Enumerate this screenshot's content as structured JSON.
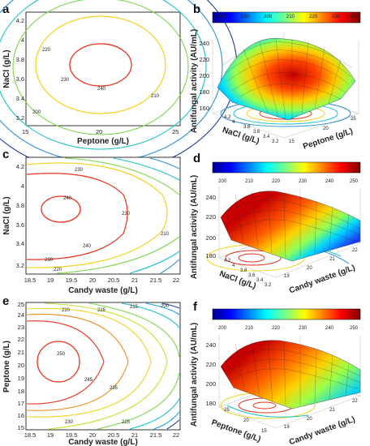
{
  "panels": {
    "a": {
      "label": "a",
      "xlabel": "Peptone (g/L)",
      "ylabel": "NaCl (g/L)",
      "xticks": [
        "15",
        "20",
        "25"
      ],
      "yticks": [
        "3.2",
        "3.4",
        "3.6",
        "3.8",
        "4",
        "4.2"
      ]
    },
    "b": {
      "label": "b",
      "zlabel": "Antifungal activity (AU/mL)",
      "xlabel": "Peptone (g/L)",
      "ylabel": "NaCl (g/L)",
      "zticks": [
        "160",
        "180",
        "200",
        "220",
        "240"
      ],
      "xticks": [
        "15",
        "20",
        "25"
      ],
      "yticks": [
        "3.2",
        "3.4",
        "3.6",
        "3.8",
        "4",
        "4.2"
      ],
      "cbar": [
        "180",
        "190",
        "200",
        "210",
        "220",
        "230",
        "240"
      ]
    },
    "c": {
      "label": "c",
      "xlabel": "Candy waste (g/L)",
      "ylabel": "NaCl (g/L)",
      "xticks": [
        "18.5",
        "19",
        "19.5",
        "20",
        "20.5",
        "21",
        "21.5",
        "22"
      ],
      "yticks": [
        "3.2",
        "3.4",
        "3.6",
        "3.8",
        "4",
        "4.2"
      ]
    },
    "d": {
      "label": "d",
      "zlabel": "Antifungal activity (AU/mL)",
      "xlabel": "Candy waste (g/L)",
      "ylabel": "NaCl (g/L)",
      "zticks": [
        "180",
        "200",
        "220",
        "240"
      ],
      "xticks": [
        "19",
        "20",
        "21",
        "22"
      ],
      "yticks": [
        "3.2",
        "3.4",
        "3.6",
        "3.8",
        "4",
        "4.2"
      ],
      "cbar": [
        "200",
        "210",
        "220",
        "230",
        "240",
        "250"
      ]
    },
    "e": {
      "label": "e",
      "xlabel": "Candy waste (g/L)",
      "ylabel": "Peptone (g/L)",
      "xticks": [
        "18.5",
        "19",
        "19.5",
        "20",
        "20.5",
        "21",
        "21.5",
        "22"
      ],
      "yticks": [
        "15",
        "16",
        "17",
        "18",
        "19",
        "20",
        "21",
        "22",
        "23",
        "24",
        "25"
      ]
    },
    "f": {
      "label": "f",
      "zlabel": "Antifungal activity (AU/mL)",
      "xlabel": "Candy waste (g/L)",
      "ylabel": "Peptone (g/L)",
      "zticks": [
        "180",
        "200",
        "220",
        "240"
      ],
      "xticks": [
        "19",
        "20",
        "21",
        "22"
      ],
      "yticks": [
        "15",
        "20",
        "25"
      ],
      "cbar": [
        "200",
        "210",
        "220",
        "230",
        "240",
        "250"
      ]
    }
  },
  "chart_data": [
    {
      "type": "contour",
      "panel": "a",
      "x_var": "Peptone (g/L)",
      "y_var": "NaCl (g/L)",
      "xlim": [
        15,
        25
      ],
      "ylim": [
        3.1,
        4.3
      ],
      "center": [
        20.2,
        3.8
      ],
      "peak": 245,
      "levels": [
        190,
        200,
        210,
        220,
        230,
        240
      ],
      "level_colors": [
        "#1e3c9e",
        "#2a8fd8",
        "#17c3c9",
        "#7fd64a",
        "#f2d21a",
        "#e8321a"
      ]
    },
    {
      "type": "surface",
      "panel": "b",
      "x_var": "Peptone (g/L)",
      "y_var": "NaCl (g/L)",
      "z_var": "Antifungal activity (AU/mL)",
      "zlim": [
        160,
        250
      ],
      "peak": 245,
      "min": 160,
      "colorbar_range": [
        180,
        240
      ]
    },
    {
      "type": "contour",
      "panel": "c",
      "x_var": "Candy waste (g/L)",
      "y_var": "NaCl (g/L)",
      "xlim": [
        18.3,
        22
      ],
      "ylim": [
        3.1,
        4.3
      ],
      "center": [
        19.3,
        3.8
      ],
      "peak": 250,
      "levels": [
        200,
        210,
        220,
        230,
        240
      ],
      "level_colors": [
        "#1e3c9e",
        "#2a8fd8",
        "#17c3c9",
        "#f2d21a",
        "#e8321a"
      ]
    },
    {
      "type": "surface",
      "panel": "d",
      "x_var": "Candy waste (g/L)",
      "y_var": "NaCl (g/L)",
      "z_var": "Antifungal activity (AU/mL)",
      "zlim": [
        180,
        250
      ],
      "peak": 248,
      "min": 185,
      "colorbar_range": [
        200,
        250
      ]
    },
    {
      "type": "contour",
      "panel": "e",
      "x_var": "Candy waste (g/L)",
      "y_var": "Peptone (g/L)",
      "xlim": [
        18.3,
        22
      ],
      "ylim": [
        15,
        25
      ],
      "center": [
        19.3,
        20
      ],
      "peak": 250,
      "levels": [
        200,
        210,
        215,
        220,
        225,
        230,
        235,
        240,
        245
      ],
      "level_colors": [
        "#1e3c9e",
        "#2a6fd8",
        "#1aa6e0",
        "#17c3c9",
        "#7fd64a",
        "#c6e02a",
        "#f2d21a",
        "#f08a1a",
        "#e8321a"
      ]
    },
    {
      "type": "surface",
      "panel": "f",
      "x_var": "Candy waste (g/L)",
      "y_var": "Peptone (g/L)",
      "z_var": "Antifungal activity (AU/mL)",
      "zlim": [
        180,
        250
      ],
      "peak": 248,
      "min": 190,
      "colorbar_range": [
        200,
        250
      ]
    }
  ]
}
